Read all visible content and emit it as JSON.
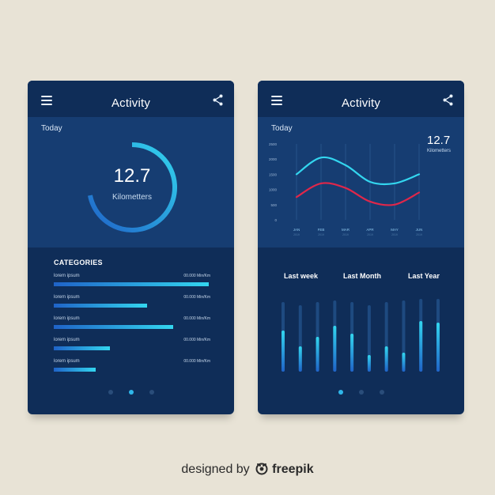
{
  "colors": {
    "background": "#e8e3d6",
    "panel_dark": "#0f2d58",
    "panel_mid": "#163d72",
    "accent_cyan": "#33d6ef",
    "accent_blue": "#1f63c8",
    "line_red": "#e0274a"
  },
  "left_screen": {
    "title": "Activity",
    "today_label": "Today",
    "metric_value": "12.7",
    "metric_unit": "Kilometters",
    "ring_progress": 0.72,
    "categories_title": "CATEGORIES",
    "categories": [
      {
        "label": "lorem ipsum",
        "value": "00.000 Min/Km",
        "fill": 1.0
      },
      {
        "label": "lorem ipsum",
        "value": "00.000 Min/Km",
        "fill": 0.6
      },
      {
        "label": "lorem ipsum",
        "value": "00.000 Min/Km",
        "fill": 0.77
      },
      {
        "label": "lorem ipsum",
        "value": "00.000 Min/Km",
        "fill": 0.36
      },
      {
        "label": "lorem ipsum",
        "value": "00.000 Min/Km",
        "fill": 0.27
      }
    ],
    "page_dots": 3,
    "active_dot": 1,
    "icons": {
      "menu": "hamburger-menu-icon",
      "share": "share-icon"
    }
  },
  "right_screen": {
    "title": "Activity",
    "today_label": "Today",
    "metric_value": "12.7",
    "metric_unit": "Kilometters",
    "tabs": [
      "Last week",
      "Last Month",
      "Last Year"
    ],
    "page_dots": 3,
    "active_dot": 0,
    "icons": {
      "menu": "hamburger-menu-icon",
      "share": "share-icon"
    }
  },
  "chart_data": [
    {
      "type": "line",
      "y_ticks": [
        "2500",
        "2000",
        "1500",
        "1000",
        "500",
        "0"
      ],
      "x_ticks": [
        "JAN",
        "FEB",
        "MAR",
        "APR",
        "MAY",
        "JUN"
      ],
      "x_sublabels": [
        "2019",
        "2019",
        "2019",
        "2019",
        "2019",
        "2019"
      ],
      "ylim": [
        0,
        2500
      ],
      "grid": true,
      "series": [
        {
          "color": "#33d6ef",
          "values": [
            1500,
            2050,
            1800,
            1250,
            1200,
            1500
          ]
        },
        {
          "color": "#e0274a",
          "values": [
            750,
            1200,
            1050,
            600,
            500,
            900
          ]
        }
      ]
    },
    {
      "type": "bar",
      "ylim": [
        0,
        1
      ],
      "grid": false,
      "values": [
        {
          "track": 0.88,
          "fill": 0.52
        },
        {
          "track": 0.84,
          "fill": 0.32
        },
        {
          "track": 0.88,
          "fill": 0.44
        },
        {
          "track": 0.9,
          "fill": 0.58
        },
        {
          "track": 0.88,
          "fill": 0.48
        },
        {
          "track": 0.84,
          "fill": 0.21
        },
        {
          "track": 0.88,
          "fill": 0.32
        },
        {
          "track": 0.9,
          "fill": 0.24
        },
        {
          "track": 0.92,
          "fill": 0.64
        },
        {
          "track": 0.92,
          "fill": 0.62
        }
      ]
    }
  ],
  "footer": {
    "prefix": "designed by",
    "brand": "freepik",
    "logo_icon": "freepik-logo-icon"
  }
}
